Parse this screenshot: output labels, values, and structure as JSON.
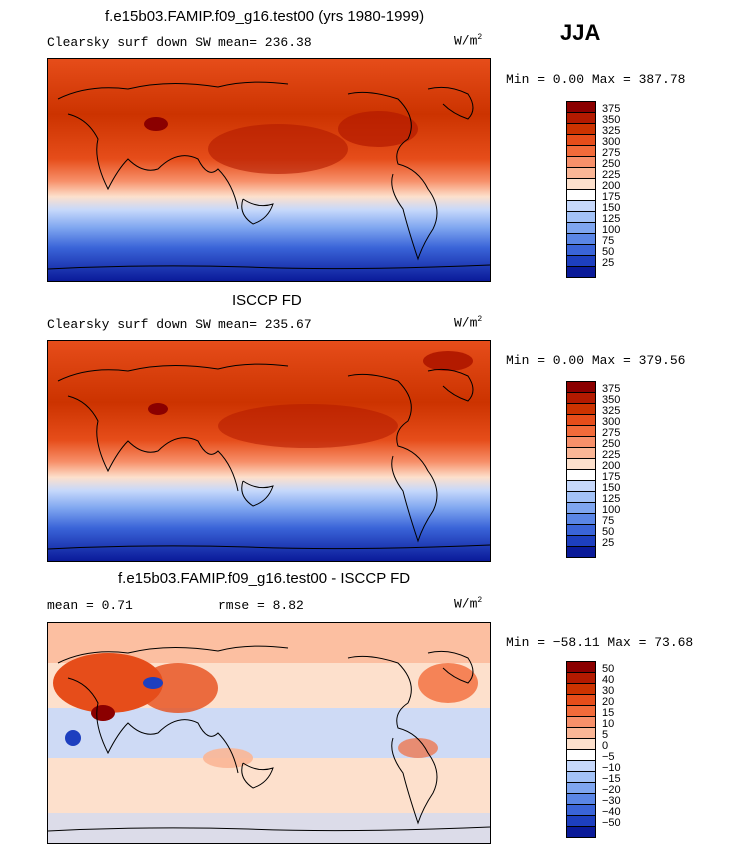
{
  "season": "JJA",
  "panels": [
    {
      "title": "f.e15b03.FAMIP.f09_g16.test00 (yrs 1980-1999)",
      "variable": "Clearsky surf down SW",
      "stat1": "mean= 236.38",
      "stat2": "",
      "units": "W/m",
      "units_sup": "2",
      "minmax": "Min =   0.00 Max = 387.78",
      "colorbar": {
        "labels": [
          "375",
          "350",
          "325",
          "300",
          "275",
          "250",
          "225",
          "200",
          "175",
          "150",
          "125",
          "100",
          "75",
          "50",
          "25"
        ],
        "colors": [
          "#8b0000",
          "#b31a00",
          "#cc3300",
          "#e64d1a",
          "#f26b3a",
          "#f7906a",
          "#fbb696",
          "#fde0cc",
          "#ffffff",
          "#c6d8fb",
          "#a3c2f7",
          "#7fa6f0",
          "#5a86e6",
          "#3a64d8",
          "#1d3fbf",
          "#0a1a99"
        ]
      }
    },
    {
      "title": "ISCCP FD",
      "variable": "Clearsky surf down SW",
      "stat1": "mean= 235.67",
      "stat2": "",
      "units": "W/m",
      "units_sup": "2",
      "minmax": "Min =   0.00 Max = 379.56",
      "colorbar": {
        "labels": [
          "375",
          "350",
          "325",
          "300",
          "275",
          "250",
          "225",
          "200",
          "175",
          "150",
          "125",
          "100",
          "75",
          "50",
          "25"
        ],
        "colors": [
          "#8b0000",
          "#b31a00",
          "#cc3300",
          "#e64d1a",
          "#f26b3a",
          "#f7906a",
          "#fbb696",
          "#fde0cc",
          "#ffffff",
          "#c6d8fb",
          "#a3c2f7",
          "#7fa6f0",
          "#5a86e6",
          "#3a64d8",
          "#1d3fbf",
          "#0a1a99"
        ]
      }
    },
    {
      "title": "f.e15b03.FAMIP.f09_g16.test00 - ISCCP FD",
      "variable": "",
      "stat1": "mean =   0.71",
      "stat2": "rmse =   8.82",
      "units": "W/m",
      "units_sup": "2",
      "minmax": "Min = −58.11 Max =  73.68",
      "colorbar": {
        "labels": [
          "50",
          "40",
          "30",
          "20",
          "15",
          "10",
          "5",
          "0",
          "−5",
          "−10",
          "−15",
          "−20",
          "−30",
          "−40",
          "−50"
        ],
        "colors": [
          "#8b0000",
          "#b31a00",
          "#cc3300",
          "#e64d1a",
          "#f26b3a",
          "#f7906a",
          "#fbb696",
          "#fde0cc",
          "#ffffff",
          "#c6d8fb",
          "#a3c2f7",
          "#7fa6f0",
          "#5a86e6",
          "#3a64d8",
          "#1d3fbf",
          "#0a1a99"
        ]
      }
    }
  ]
}
